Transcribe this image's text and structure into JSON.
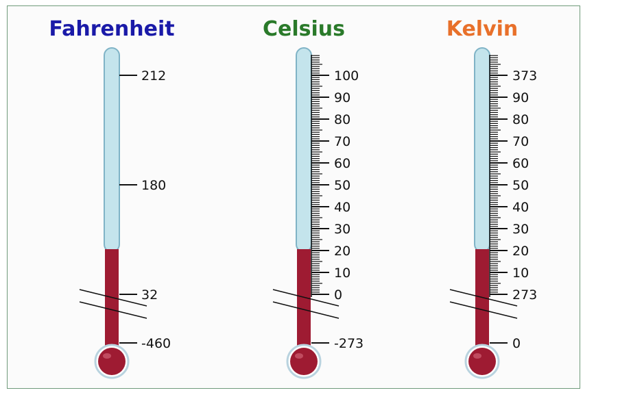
{
  "colors": {
    "fahrenheit_title": "#1a1aa8",
    "celsius_title": "#2a7a2a",
    "kelvin_title": "#e8702a",
    "tube_glass": "#c4e4ec",
    "tube_outline": "#7fb3c6",
    "mercury": "#9e1b32",
    "bulb_outline": "#b9d3df",
    "tick": "#111111"
  },
  "thermometers": [
    {
      "id": "fahrenheit",
      "title": "Fahrenheit",
      "labels": [
        "212",
        "180",
        "32",
        "-460"
      ],
      "fine_ticks": false
    },
    {
      "id": "celsius",
      "title": "Celsius",
      "labels": [
        "100",
        "90",
        "80",
        "70",
        "60",
        "50",
        "40",
        "30",
        "20",
        "10",
        "0",
        "-273"
      ],
      "fine_ticks": true
    },
    {
      "id": "kelvin",
      "title": "Kelvin",
      "labels": [
        "373",
        "90",
        "80",
        "70",
        "60",
        "50",
        "40",
        "30",
        "20",
        "10",
        "273",
        "0"
      ],
      "fine_ticks": true
    }
  ]
}
